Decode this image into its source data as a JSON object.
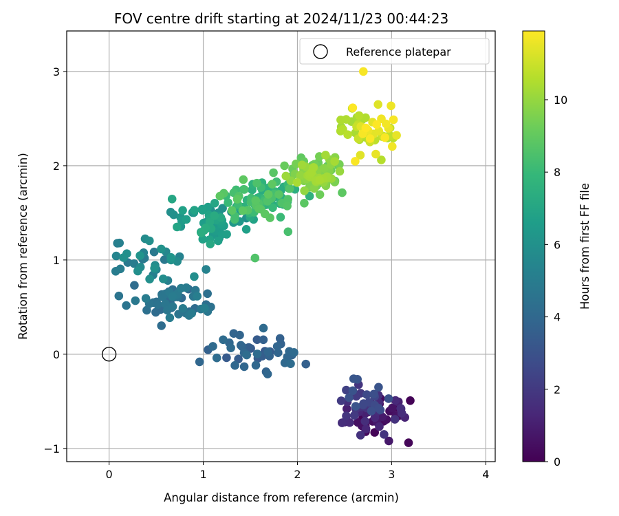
{
  "chart_data": {
    "type": "scatter",
    "title": "FOV centre drift starting at 2024/11/23 00:44:23",
    "xlabel": "Angular distance from reference (arcmin)",
    "ylabel": "Rotation from reference (arcmin)",
    "xlim": [
      -0.45,
      4.1
    ],
    "ylim": [
      -1.14,
      3.43
    ],
    "xticks": [
      0,
      1,
      2,
      3,
      4
    ],
    "yticks": [
      -1,
      0,
      1,
      2,
      3
    ],
    "grid": true,
    "colormap": "viridis",
    "colorbar": {
      "label": "Hours from first FF file",
      "range": [
        0,
        11.9
      ],
      "ticks": [
        0,
        2,
        4,
        6,
        8,
        10
      ]
    },
    "legend": {
      "placement": "top-right",
      "entries": [
        {
          "label": "Reference platepar",
          "marker": "open-circle",
          "x": 0,
          "y": 0
        }
      ]
    },
    "series": [
      {
        "color_by": "hours",
        "clusters": [
          {
            "hours": [
              0.0,
              1.8
            ],
            "x_center": 2.85,
            "y_center": -0.62,
            "x_spread": 0.32,
            "y_spread": 0.22,
            "count": 60
          },
          {
            "hours": [
              1.8,
              3.3
            ],
            "x_center": 2.72,
            "y_center": -0.48,
            "x_spread": 0.28,
            "y_spread": 0.2,
            "count": 25
          },
          {
            "hours": [
              3.3,
              4.2
            ],
            "x_center": 1.55,
            "y_center": 0.0,
            "x_spread": 0.6,
            "y_spread": 0.22,
            "count": 45
          },
          {
            "hours": [
              4.0,
              5.2
            ],
            "x_center": 0.7,
            "y_center": 0.55,
            "x_spread": 0.45,
            "y_spread": 0.25,
            "count": 55
          },
          {
            "hours": [
              4.8,
              6.2
            ],
            "x_center": 0.45,
            "y_center": 0.95,
            "x_spread": 0.4,
            "y_spread": 0.25,
            "count": 30
          },
          {
            "hours": [
              5.8,
              7.4
            ],
            "x_center": 1.1,
            "y_center": 1.4,
            "x_spread": 0.45,
            "y_spread": 0.22,
            "count": 70
          },
          {
            "hours": [
              7.2,
              9.0
            ],
            "x_center": 1.6,
            "y_center": 1.65,
            "x_spread": 0.38,
            "y_spread": 0.22,
            "count": 80
          },
          {
            "hours": [
              8.8,
              10.4
            ],
            "x_center": 2.2,
            "y_center": 1.9,
            "x_spread": 0.3,
            "y_spread": 0.2,
            "count": 90
          },
          {
            "hours": [
              10.2,
              11.9
            ],
            "x_center": 2.75,
            "y_center": 2.35,
            "x_spread": 0.32,
            "y_spread": 0.25,
            "count": 55
          }
        ],
        "outliers": [
          {
            "x": 2.7,
            "y": 3.0,
            "hours": 11.8
          },
          {
            "x": 1.55,
            "y": 1.02,
            "hours": 8.6
          },
          {
            "x": 0.11,
            "y": 1.18,
            "hours": 5.2
          },
          {
            "x": 0.07,
            "y": 0.88,
            "hours": 5.0
          },
          {
            "x": 2.82,
            "y": -0.83,
            "hours": 0.1
          },
          {
            "x": 2.97,
            "y": -0.92,
            "hours": 0.8
          },
          {
            "x": 3.18,
            "y": -0.94,
            "hours": 0.2
          },
          {
            "x": 1.03,
            "y": 0.9,
            "hours": 5.3
          },
          {
            "x": 1.9,
            "y": 1.3,
            "hours": 8.4
          }
        ]
      }
    ]
  }
}
